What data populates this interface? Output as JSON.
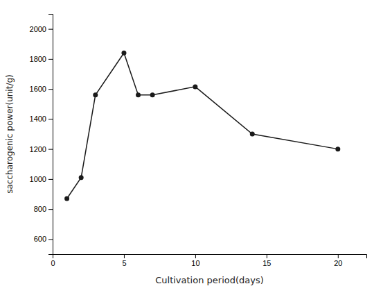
{
  "chart_data": {
    "type": "line",
    "x": [
      1,
      2,
      3,
      5,
      6,
      7,
      10,
      14,
      20
    ],
    "values": [
      870,
      1010,
      1560,
      1840,
      1560,
      1560,
      1615,
      1300,
      1200
    ],
    "xlabel": "Cultivation period(days)",
    "ylabel": "saccharogenic power(unit/g)",
    "xlim": [
      0,
      22
    ],
    "ylim": [
      500,
      2100
    ],
    "xticks": [
      0,
      5,
      10,
      15,
      20
    ],
    "yticks": [
      600,
      800,
      1000,
      1200,
      1400,
      1600,
      1800,
      2000
    ],
    "color": "#1a1a1a",
    "marker": "circle"
  }
}
